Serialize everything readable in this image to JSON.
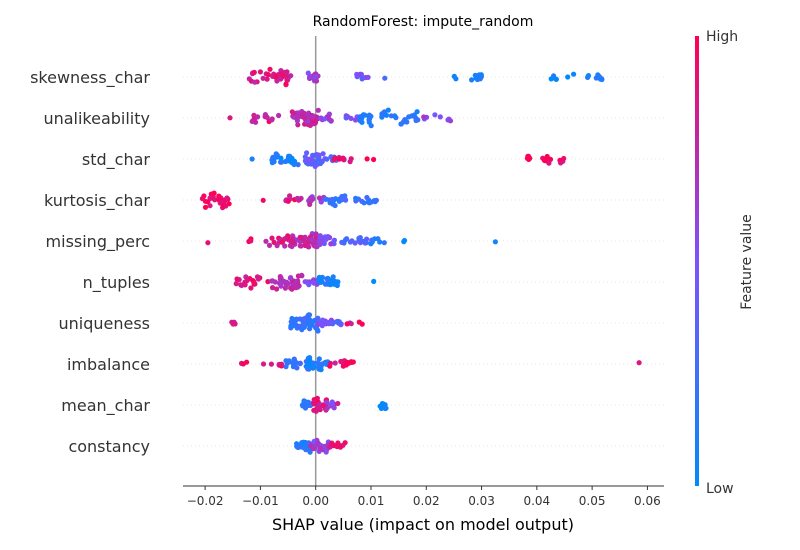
{
  "chart_data": {
    "type": "scatter",
    "subtype": "shap-beeswarm",
    "title": "RandomForest: impute_random",
    "xlabel": "SHAP value (impact on model output)",
    "xlim": [
      -0.024,
      0.063
    ],
    "xticks": [
      -0.02,
      -0.01,
      0.0,
      0.01,
      0.02,
      0.03,
      0.04,
      0.05,
      0.06
    ],
    "xtick_labels": [
      "−0.02",
      "−0.01",
      "0.00",
      "0.01",
      "0.02",
      "0.03",
      "0.04",
      "0.05",
      "0.06"
    ],
    "grid": false,
    "colorbar": {
      "label": "Feature value",
      "high_label": "High",
      "low_label": "Low",
      "low_color": "#008bfb",
      "high_color": "#ff0052"
    },
    "features": [
      {
        "name": "skewness_char",
        "groups": [
          {
            "x": [
              -0.012,
              -0.0045
            ],
            "color": 0.85,
            "n": 40
          },
          {
            "x": [
              -0.0015,
              0.0005
            ],
            "color": 0.65,
            "n": 14
          },
          {
            "x": [
              0.007,
              0.0095
            ],
            "color": 0.45,
            "n": 10
          },
          {
            "x": [
              0.0125,
              0.0125
            ],
            "color": 0.3,
            "n": 1
          },
          {
            "x": [
              0.0245,
              0.0255
            ],
            "color": 0.05,
            "n": 2
          },
          {
            "x": [
              0.028,
              0.03
            ],
            "color": 0.05,
            "n": 10
          },
          {
            "x": [
              0.0425,
              0.047
            ],
            "color": 0.05,
            "n": 6
          },
          {
            "x": [
              0.049,
              0.0525
            ],
            "color": 0.05,
            "n": 10
          }
        ]
      },
      {
        "name": "unalikeability",
        "groups": [
          {
            "x": [
              -0.0155,
              -0.0155
            ],
            "color": 0.95,
            "n": 1
          },
          {
            "x": [
              -0.0115,
              -0.0065
            ],
            "color": 0.85,
            "n": 14
          },
          {
            "x": [
              -0.0045,
              0.0005
            ],
            "color": 0.75,
            "n": 50
          },
          {
            "x": [
              0.0005,
              0.003
            ],
            "color": 0.6,
            "n": 12
          },
          {
            "x": [
              0.004,
              0.0075
            ],
            "color": 0.5,
            "n": 6
          },
          {
            "x": [
              0.008,
              0.019
            ],
            "color": 0.15,
            "n": 40
          },
          {
            "x": [
              0.0195,
              0.025
            ],
            "color": 0.55,
            "n": 8
          }
        ]
      },
      {
        "name": "std_char",
        "groups": [
          {
            "x": [
              -0.0115,
              -0.0115
            ],
            "color": 0.1,
            "n": 1
          },
          {
            "x": [
              -0.008,
              -0.003
            ],
            "color": 0.1,
            "n": 26
          },
          {
            "x": [
              -0.002,
              0.0015
            ],
            "color": 0.4,
            "n": 30
          },
          {
            "x": [
              0.0015,
              0.0055
            ],
            "color": 0.3,
            "n": 12
          },
          {
            "x": [
              0.0025,
              0.0065
            ],
            "color": 0.85,
            "n": 8
          },
          {
            "x": [
              0.009,
              0.0105
            ],
            "color": 0.95,
            "n": 2
          },
          {
            "x": [
              0.0375,
              0.039
            ],
            "color": 0.95,
            "n": 5
          },
          {
            "x": [
              0.041,
              0.045
            ],
            "color": 0.95,
            "n": 14
          }
        ]
      },
      {
        "name": "kurtosis_char",
        "groups": [
          {
            "x": [
              -0.0205,
              -0.0155
            ],
            "color": 0.95,
            "n": 28
          },
          {
            "x": [
              -0.0095,
              -0.0095
            ],
            "color": 0.95,
            "n": 1
          },
          {
            "x": [
              -0.0055,
              -0.002
            ],
            "color": 0.85,
            "n": 12
          },
          {
            "x": [
              -0.0015,
              0.0015
            ],
            "color": 0.65,
            "n": 16
          },
          {
            "x": [
              0.0015,
              0.0055
            ],
            "color": 0.2,
            "n": 22
          },
          {
            "x": [
              0.0065,
              0.0115
            ],
            "color": 0.2,
            "n": 14
          }
        ]
      },
      {
        "name": "missing_perc",
        "groups": [
          {
            "x": [
              -0.0195,
              -0.0195
            ],
            "color": 0.9,
            "n": 1
          },
          {
            "x": [
              -0.0135,
              -0.0115
            ],
            "color": 0.9,
            "n": 3
          },
          {
            "x": [
              -0.009,
              -0.0045
            ],
            "color": 0.85,
            "n": 20
          },
          {
            "x": [
              -0.0045,
              0.0005
            ],
            "color": 0.75,
            "n": 55
          },
          {
            "x": [
              0.0005,
              0.004
            ],
            "color": 0.5,
            "n": 20
          },
          {
            "x": [
              0.004,
              0.0095
            ],
            "color": 0.3,
            "n": 16
          },
          {
            "x": [
              0.0095,
              0.0125
            ],
            "color": 0.15,
            "n": 8
          },
          {
            "x": [
              0.0155,
              0.0185
            ],
            "color": 0.05,
            "n": 2
          },
          {
            "x": [
              0.0325,
              0.0325
            ],
            "color": 0.05,
            "n": 1
          }
        ]
      },
      {
        "name": "n_tuples",
        "groups": [
          {
            "x": [
              -0.0145,
              -0.0085
            ],
            "color": 0.9,
            "n": 22
          },
          {
            "x": [
              -0.008,
              -0.0025
            ],
            "color": 0.7,
            "n": 36
          },
          {
            "x": [
              -0.002,
              0.0005
            ],
            "color": 0.55,
            "n": 14
          },
          {
            "x": [
              0.0005,
              0.005
            ],
            "color": 0.1,
            "n": 26
          },
          {
            "x": [
              0.0105,
              0.0105
            ],
            "color": 0.1,
            "n": 1
          }
        ]
      },
      {
        "name": "uniqueness",
        "groups": [
          {
            "x": [
              -0.0155,
              -0.0145
            ],
            "color": 0.95,
            "n": 4
          },
          {
            "x": [
              -0.0045,
              0.0005
            ],
            "color": 0.2,
            "n": 50
          },
          {
            "x": [
              0.0005,
              0.003
            ],
            "color": 0.55,
            "n": 16
          },
          {
            "x": [
              0.003,
              0.005
            ],
            "color": 0.35,
            "n": 8
          },
          {
            "x": [
              0.0055,
              0.0085
            ],
            "color": 0.9,
            "n": 5
          }
        ]
      },
      {
        "name": "imbalance",
        "groups": [
          {
            "x": [
              -0.0135,
              -0.011
            ],
            "color": 0.9,
            "n": 3
          },
          {
            "x": [
              -0.0095,
              -0.006
            ],
            "color": 0.9,
            "n": 6
          },
          {
            "x": [
              -0.0055,
              -0.001
            ],
            "color": 0.2,
            "n": 22
          },
          {
            "x": [
              -0.0015,
              0.0025
            ],
            "color": 0.1,
            "n": 28
          },
          {
            "x": [
              0.0025,
              0.007
            ],
            "color": 0.9,
            "n": 14
          },
          {
            "x": [
              0.0585,
              0.0585
            ],
            "color": 0.95,
            "n": 1
          }
        ]
      },
      {
        "name": "mean_char",
        "groups": [
          {
            "x": [
              -0.0025,
              -0.0005
            ],
            "color": 0.2,
            "n": 14
          },
          {
            "x": [
              -0.0005,
              0.002
            ],
            "color": 0.85,
            "n": 30
          },
          {
            "x": [
              0.002,
              0.0035
            ],
            "color": 0.6,
            "n": 12
          },
          {
            "x": [
              0.004,
              0.004
            ],
            "color": 0.85,
            "n": 1
          },
          {
            "x": [
              0.0115,
              0.013
            ],
            "color": 0.05,
            "n": 9
          }
        ]
      },
      {
        "name": "constancy",
        "groups": [
          {
            "x": [
              -0.0035,
              -0.001
            ],
            "color": 0.15,
            "n": 26
          },
          {
            "x": [
              -0.001,
              0.0025
            ],
            "color": 0.6,
            "n": 28
          },
          {
            "x": [
              0.0025,
              0.0055
            ],
            "color": 0.9,
            "n": 12
          }
        ]
      }
    ]
  }
}
